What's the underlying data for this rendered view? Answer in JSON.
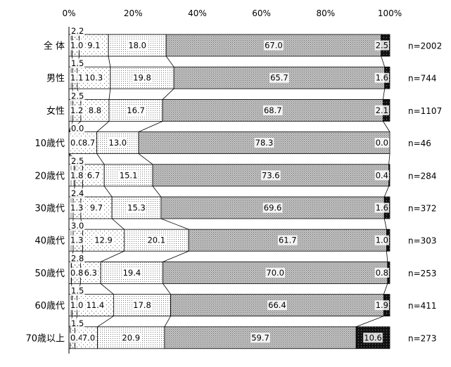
{
  "chart_data": {
    "type": "bar",
    "stacked": true,
    "orientation": "horizontal",
    "percent": true,
    "xlim": [
      0,
      100
    ],
    "xticks": [
      "0%",
      "20%",
      "40%",
      "60%",
      "80%",
      "100%"
    ],
    "categories": [
      "全 体",
      "男性",
      "女性",
      "10歳代",
      "20歳代",
      "30歳代",
      "40歳代",
      "50歳代",
      "60歳代",
      "70歳以上"
    ],
    "n_labels": [
      "n=2002",
      "n=744",
      "n=1107",
      "n=46",
      "n=284",
      "n=372",
      "n=303",
      "n=253",
      "n=411",
      "n=273"
    ],
    "series": [
      {
        "values": [
          1.0,
          1.1,
          1.2,
          0.0,
          1.8,
          1.3,
          1.3,
          0.8,
          1.0,
          0.4
        ],
        "color": "#ffffff",
        "pattern": "vlines"
      },
      {
        "values": [
          2.2,
          1.5,
          2.5,
          0.0,
          2.5,
          2.4,
          3.0,
          2.8,
          1.5,
          1.5
        ],
        "color": "#ffffff",
        "pattern": "dash"
      },
      {
        "values": [
          9.1,
          10.3,
          8.8,
          8.7,
          6.7,
          9.7,
          12.9,
          6.3,
          11.4,
          7.0
        ],
        "color": "#ffffff",
        "pattern": "sparse-dots"
      },
      {
        "values": [
          18.0,
          19.8,
          16.7,
          13.0,
          15.1,
          15.3,
          20.1,
          19.4,
          17.8,
          20.9
        ],
        "color": "#ffffff",
        "pattern": "dots"
      },
      {
        "values": [
          67.0,
          65.7,
          68.7,
          78.3,
          73.6,
          69.6,
          61.7,
          70.0,
          66.4,
          59.7
        ],
        "color": "#bdbdbd",
        "pattern": "dense-dots"
      },
      {
        "values": [
          2.5,
          1.6,
          2.1,
          0.0,
          0.4,
          1.6,
          1.0,
          0.8,
          1.9,
          10.6
        ],
        "color": "#111111",
        "pattern": "dark"
      }
    ]
  }
}
